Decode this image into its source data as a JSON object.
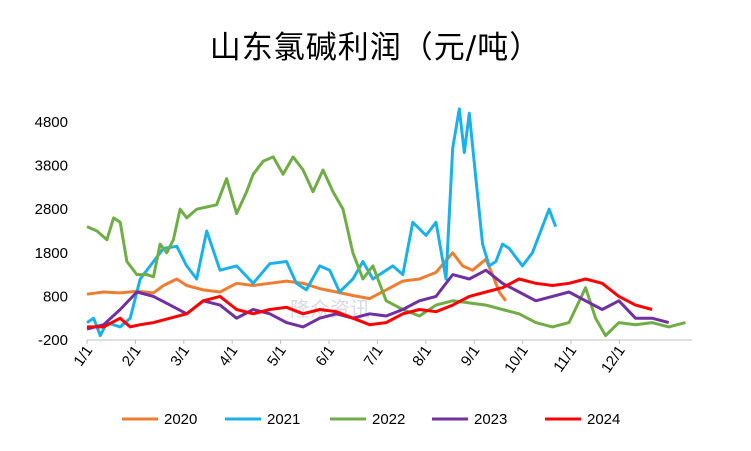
{
  "chart_data": {
    "type": "line",
    "title": "山东氯碱利润（元/吨）",
    "xlabel": "",
    "ylabel": "",
    "ylim": [
      -200,
      5200
    ],
    "yticks": [
      "-200",
      "800",
      "1800",
      "2800",
      "3800",
      "4800"
    ],
    "xticks": [
      "1/1",
      "2/1",
      "3/1",
      "4/1",
      "5/1",
      "6/1",
      "7/1",
      "8/1",
      "9/1",
      "10/1",
      "11/1",
      "12/1"
    ],
    "grid": false,
    "legend_position": "bottom",
    "watermark": "隆众资讯",
    "series": [
      {
        "name": "2020",
        "color": "#ED7D31",
        "points": [
          [
            0,
            850
          ],
          [
            0.5,
            900
          ],
          [
            1,
            880
          ],
          [
            1.5,
            920
          ],
          [
            2,
            880
          ],
          [
            2.3,
            1050
          ],
          [
            2.7,
            1200
          ],
          [
            3,
            1050
          ],
          [
            3.5,
            950
          ],
          [
            4,
            900
          ],
          [
            4.5,
            1100
          ],
          [
            5,
            1050
          ],
          [
            5.5,
            1100
          ],
          [
            6,
            1150
          ],
          [
            6.5,
            1100
          ],
          [
            7,
            980
          ],
          [
            7.5,
            900
          ],
          [
            8,
            820
          ],
          [
            8.5,
            750
          ],
          [
            9,
            950
          ],
          [
            9.5,
            1150
          ],
          [
            10,
            1200
          ],
          [
            10.5,
            1350
          ],
          [
            11,
            1800
          ],
          [
            11.3,
            1500
          ],
          [
            11.6,
            1400
          ],
          [
            12,
            1650
          ],
          [
            12.2,
            1300
          ],
          [
            12.4,
            900
          ],
          [
            12.6,
            700
          ]
        ]
      },
      {
        "name": "2021",
        "color": "#1CB0E8",
        "points": [
          [
            0,
            200
          ],
          [
            0.2,
            300
          ],
          [
            0.4,
            -100
          ],
          [
            0.6,
            200
          ],
          [
            1,
            100
          ],
          [
            1.3,
            300
          ],
          [
            1.6,
            1200
          ],
          [
            2,
            1600
          ],
          [
            2.3,
            1900
          ],
          [
            2.7,
            1950
          ],
          [
            3,
            1500
          ],
          [
            3.3,
            1200
          ],
          [
            3.6,
            2300
          ],
          [
            4,
            1400
          ],
          [
            4.5,
            1500
          ],
          [
            5,
            1100
          ],
          [
            5.5,
            1550
          ],
          [
            6,
            1600
          ],
          [
            6.3,
            1100
          ],
          [
            6.6,
            950
          ],
          [
            7,
            1500
          ],
          [
            7.3,
            1400
          ],
          [
            7.6,
            900
          ],
          [
            8,
            1200
          ],
          [
            8.3,
            1600
          ],
          [
            8.6,
            1200
          ],
          [
            9,
            1400
          ],
          [
            9.2,
            1500
          ],
          [
            9.5,
            1300
          ],
          [
            9.8,
            2500
          ],
          [
            10.2,
            2200
          ],
          [
            10.5,
            2500
          ],
          [
            10.8,
            1200
          ],
          [
            11,
            4200
          ],
          [
            11.2,
            5100
          ],
          [
            11.35,
            4100
          ],
          [
            11.5,
            5000
          ],
          [
            11.7,
            3500
          ],
          [
            11.9,
            2000
          ],
          [
            12.1,
            1500
          ],
          [
            12.3,
            1600
          ],
          [
            12.5,
            2000
          ],
          [
            12.7,
            1900
          ],
          [
            12.9,
            1700
          ],
          [
            13.1,
            1500
          ],
          [
            13.4,
            1800
          ],
          [
            13.7,
            2400
          ],
          [
            13.9,
            2800
          ],
          [
            14.1,
            2400
          ]
        ]
      },
      {
        "name": "2022",
        "color": "#70AD47",
        "points": [
          [
            0,
            2400
          ],
          [
            0.3,
            2300
          ],
          [
            0.6,
            2100
          ],
          [
            0.8,
            2600
          ],
          [
            1,
            2500
          ],
          [
            1.2,
            1600
          ],
          [
            1.5,
            1300
          ],
          [
            1.8,
            1300
          ],
          [
            2,
            1250
          ],
          [
            2.2,
            2000
          ],
          [
            2.4,
            1800
          ],
          [
            2.6,
            2100
          ],
          [
            2.8,
            2800
          ],
          [
            3,
            2600
          ],
          [
            3.3,
            2800
          ],
          [
            3.6,
            2850
          ],
          [
            3.9,
            2900
          ],
          [
            4.2,
            3500
          ],
          [
            4.5,
            2700
          ],
          [
            4.8,
            3200
          ],
          [
            5,
            3600
          ],
          [
            5.3,
            3900
          ],
          [
            5.6,
            4000
          ],
          [
            5.9,
            3600
          ],
          [
            6.2,
            4000
          ],
          [
            6.5,
            3700
          ],
          [
            6.8,
            3200
          ],
          [
            7.1,
            3700
          ],
          [
            7.4,
            3200
          ],
          [
            7.7,
            2800
          ],
          [
            8,
            1800
          ],
          [
            8.3,
            1200
          ],
          [
            8.6,
            1500
          ],
          [
            9,
            700
          ],
          [
            9.5,
            500
          ],
          [
            10,
            350
          ],
          [
            10.5,
            600
          ],
          [
            11,
            700
          ],
          [
            11.5,
            650
          ],
          [
            12,
            600
          ],
          [
            12.5,
            500
          ],
          [
            13,
            400
          ],
          [
            13.5,
            200
          ],
          [
            14,
            100
          ],
          [
            14.5,
            200
          ],
          [
            15,
            1000
          ],
          [
            15.3,
            300
          ],
          [
            15.6,
            -100
          ],
          [
            16,
            200
          ],
          [
            16.5,
            150
          ],
          [
            17,
            200
          ],
          [
            17.5,
            100
          ],
          [
            18,
            200
          ]
        ]
      },
      {
        "name": "2023",
        "color": "#7030A0",
        "points": [
          [
            0,
            50
          ],
          [
            0.5,
            150
          ],
          [
            1,
            500
          ],
          [
            1.5,
            900
          ],
          [
            2,
            800
          ],
          [
            2.5,
            600
          ],
          [
            3,
            400
          ],
          [
            3.5,
            700
          ],
          [
            4,
            600
          ],
          [
            4.5,
            300
          ],
          [
            5,
            500
          ],
          [
            5.5,
            400
          ],
          [
            6,
            200
          ],
          [
            6.5,
            100
          ],
          [
            7,
            300
          ],
          [
            7.5,
            400
          ],
          [
            8,
            300
          ],
          [
            8.5,
            400
          ],
          [
            9,
            350
          ],
          [
            9.5,
            500
          ],
          [
            10,
            700
          ],
          [
            10.5,
            800
          ],
          [
            11,
            1300
          ],
          [
            11.5,
            1200
          ],
          [
            12,
            1400
          ],
          [
            12.5,
            1100
          ],
          [
            13,
            900
          ],
          [
            13.5,
            700
          ],
          [
            14,
            800
          ],
          [
            14.5,
            900
          ],
          [
            15,
            700
          ],
          [
            15.5,
            500
          ],
          [
            16,
            700
          ],
          [
            16.5,
            300
          ],
          [
            17,
            300
          ],
          [
            17.5,
            200
          ]
        ]
      },
      {
        "name": "2024",
        "color": "#FF0000",
        "points": [
          [
            0,
            100
          ],
          [
            0.5,
            100
          ],
          [
            1,
            300
          ],
          [
            1.3,
            100
          ],
          [
            1.6,
            150
          ],
          [
            2,
            200
          ],
          [
            2.5,
            300
          ],
          [
            3,
            400
          ],
          [
            3.5,
            700
          ],
          [
            4,
            800
          ],
          [
            4.5,
            500
          ],
          [
            5,
            400
          ],
          [
            5.5,
            500
          ],
          [
            6,
            550
          ],
          [
            6.5,
            400
          ],
          [
            7,
            500
          ],
          [
            7.5,
            450
          ],
          [
            8,
            300
          ],
          [
            8.5,
            150
          ],
          [
            9,
            200
          ],
          [
            9.5,
            400
          ],
          [
            10,
            500
          ],
          [
            10.5,
            450
          ],
          [
            11,
            600
          ],
          [
            11.5,
            800
          ],
          [
            12,
            900
          ],
          [
            12.5,
            1000
          ],
          [
            13,
            1200
          ],
          [
            13.5,
            1100
          ],
          [
            14,
            1050
          ],
          [
            14.5,
            1100
          ],
          [
            15,
            1200
          ],
          [
            15.5,
            1100
          ],
          [
            16,
            800
          ],
          [
            16.5,
            600
          ],
          [
            17,
            500
          ]
        ]
      }
    ]
  }
}
